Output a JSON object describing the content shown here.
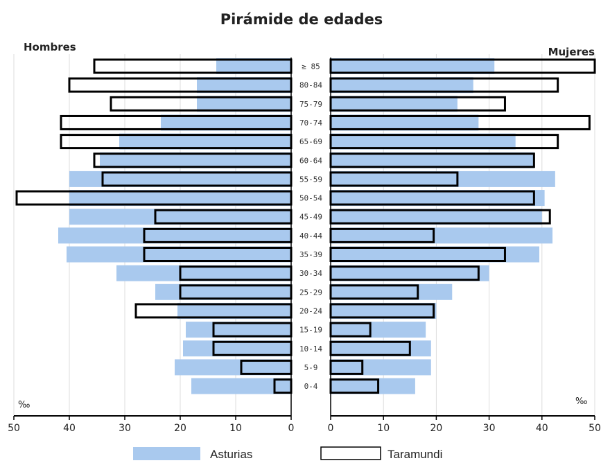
{
  "chart_data": {
    "type": "bar",
    "orientation": "horizontal",
    "title": "Pirámide de edades",
    "left_label": "Hombres",
    "right_label": "Mujeres",
    "unit": "‰",
    "xlim": [
      0,
      50
    ],
    "x_ticks": [
      50,
      40,
      30,
      20,
      10,
      0
    ],
    "grid": true,
    "legend_position": "bottom",
    "categories": [
      "≥ 85",
      "80-84",
      "75-79",
      "70-74",
      "65-69",
      "60-64",
      "55-59",
      "50-54",
      "45-49",
      "40-44",
      "35-39",
      "30-34",
      "25-29",
      "20-24",
      "15-19",
      "10-14",
      "5-9",
      "0-4"
    ],
    "series": [
      {
        "name": "Asturias",
        "color": "#a9c9ee",
        "hombres": [
          13.5,
          17,
          17,
          23.5,
          31,
          34.5,
          40,
          40,
          40,
          42,
          40.5,
          31.5,
          24.5,
          20.5,
          19,
          19.5,
          21,
          18
        ],
        "mujeres": [
          31,
          27,
          24,
          28,
          35,
          38.5,
          42.5,
          40.5,
          40,
          42,
          39.5,
          30,
          23,
          20,
          18,
          19,
          19,
          16
        ]
      },
      {
        "name": "Taramundi",
        "color": "#ffffff",
        "hombres": [
          35.5,
          40,
          32.5,
          41.5,
          41.5,
          35.5,
          34,
          49.5,
          24.5,
          26.5,
          26.5,
          20,
          20,
          28,
          14,
          14,
          9,
          3
        ],
        "mujeres": [
          50,
          43,
          33,
          49,
          43,
          38.5,
          24,
          38.5,
          41.5,
          19.5,
          33,
          28,
          16.5,
          19.5,
          7.5,
          15,
          6,
          9
        ]
      }
    ]
  }
}
